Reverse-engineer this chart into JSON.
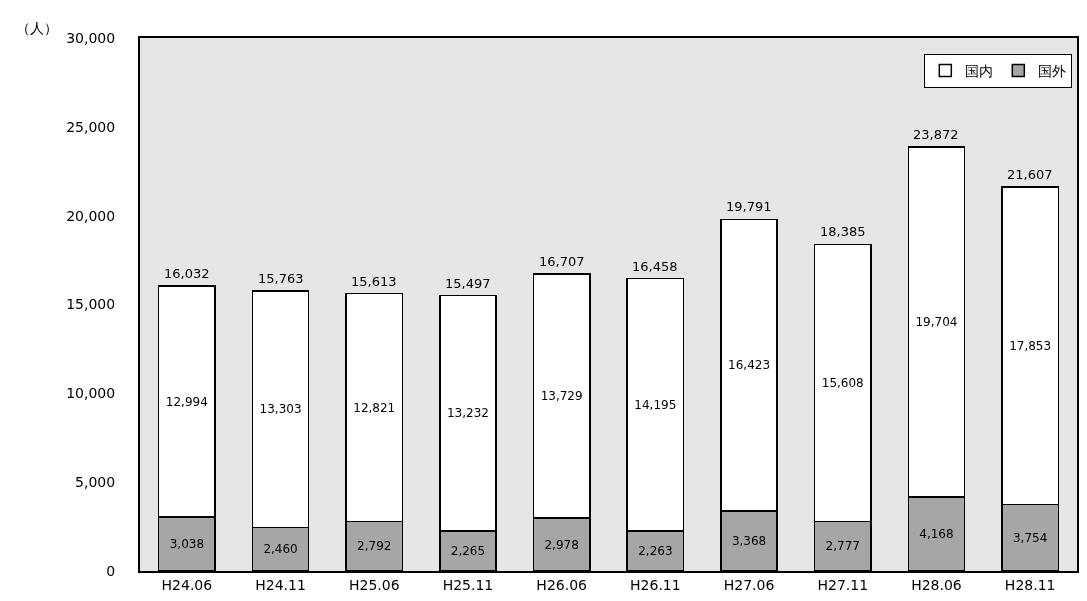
{
  "chart_data": {
    "type": "bar",
    "stacked": true,
    "ylabel": "（人）",
    "categories": [
      "H24.06",
      "H24.11",
      "H25.06",
      "H25.11",
      "H26.06",
      "H26.11",
      "H27.06",
      "H27.11",
      "H28.06",
      "H28.11"
    ],
    "series": [
      {
        "name": "国外",
        "color": "#a6a6a6",
        "values": [
          3038,
          2460,
          2792,
          2265,
          2978,
          2263,
          3368,
          2777,
          4168,
          3754
        ],
        "value_labels": [
          "3,038",
          "2,460",
          "2,792",
          "2,265",
          "2,978",
          "2,263",
          "3,368",
          "2,777",
          "4,168",
          "3,754"
        ]
      },
      {
        "name": "国内",
        "color": "#ffffff",
        "values": [
          12994,
          13303,
          12821,
          13232,
          13729,
          14195,
          16423,
          15608,
          19704,
          17853
        ],
        "value_labels": [
          "12,994",
          "13,303",
          "12,821",
          "13,232",
          "13,729",
          "14,195",
          "16,423",
          "15,608",
          "19,704",
          "17,853"
        ]
      }
    ],
    "totals": [
      "16,032",
      "15,763",
      "15,613",
      "15,497",
      "16,707",
      "16,458",
      "19,791",
      "18,385",
      "23,872",
      "21,607"
    ],
    "ylim": [
      0,
      30000
    ],
    "yticks": [
      0,
      {
        "value": 5000,
        "label": "5,000"
      },
      {
        "value": 10000,
        "label": "10,000"
      },
      {
        "value": 15000,
        "label": "15,000"
      },
      {
        "value": 20000,
        "label": "20,000"
      },
      {
        "value": 25000,
        "label": "25,000"
      },
      {
        "value": 30000,
        "label": "30,000"
      }
    ],
    "grid": false,
    "legend": "top right"
  }
}
